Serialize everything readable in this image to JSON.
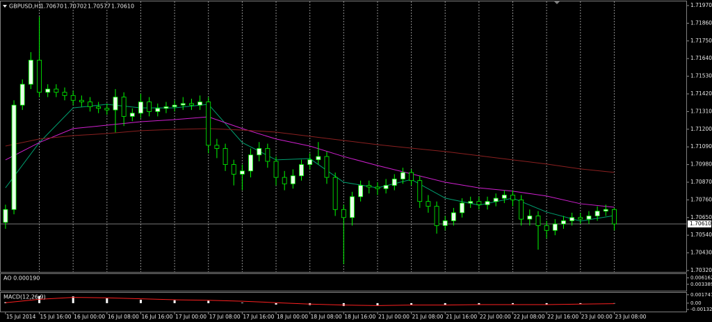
{
  "chart_data": {
    "type": "candlestick",
    "title": "GBPUSD,H1",
    "header_values": [
      {
        "value": 1.7067,
        "label": "1.70670"
      },
      {
        "value": 1.70702,
        "label": "1.70702"
      },
      {
        "value": 1.70577,
        "label": "1.70577"
      },
      {
        "value": 1.7061,
        "label": "1.70610"
      }
    ],
    "current_price": {
      "value": 1.7061,
      "label": "1.70610"
    },
    "grid": "vertical",
    "up_color": "#e8ffe8",
    "down_color": "#000000",
    "wick_color": "#00ff00",
    "xlim": [
      -1.3,
      161.2
    ],
    "ylim": [
      1.70307,
      1.71996
    ],
    "xticks": [
      {
        "value": 0,
        "label": "15 Jul 2014"
      },
      {
        "value": 8,
        "label": "15 Jul 16:00"
      },
      {
        "value": 16,
        "label": "16 Jul 00:00"
      },
      {
        "value": 24,
        "label": "16 Jul 08:00"
      },
      {
        "value": 32,
        "label": "16 Jul 16:00"
      },
      {
        "value": 40,
        "label": "17 Jul 00:00"
      },
      {
        "value": 48,
        "label": "17 Jul 08:00"
      },
      {
        "value": 56,
        "label": "17 Jul 16:00"
      },
      {
        "value": 64,
        "label": "18 Jul 00:00"
      },
      {
        "value": 72,
        "label": "18 Jul 08:00"
      },
      {
        "value": 80,
        "label": "18 Jul 16:00"
      },
      {
        "value": 88,
        "label": "21 Jul 00:00"
      },
      {
        "value": 96,
        "label": "21 Jul 08:00"
      },
      {
        "value": 104,
        "label": "21 Jul 16:00"
      },
      {
        "value": 112,
        "label": "22 Jul 00:00"
      },
      {
        "value": 120,
        "label": "22 Jul 08:00"
      },
      {
        "value": 128,
        "label": "22 Jul 16:00"
      },
      {
        "value": 136,
        "label": "23 Jul 00:00"
      },
      {
        "value": 144,
        "label": "23 Jul 08:00"
      }
    ],
    "yticks": [
      {
        "value": 1.7197,
        "label": "1.71970"
      },
      {
        "value": 1.7186,
        "label": "1.71860"
      },
      {
        "value": 1.7175,
        "label": "1.71750"
      },
      {
        "value": 1.7164,
        "label": "1.71640"
      },
      {
        "value": 1.7153,
        "label": "1.71530"
      },
      {
        "value": 1.7142,
        "label": "1.71420"
      },
      {
        "value": 1.7131,
        "label": "1.71310"
      },
      {
        "value": 1.712,
        "label": "1.71200"
      },
      {
        "value": 1.7109,
        "label": "1.71090"
      },
      {
        "value": 1.7098,
        "label": "1.70980"
      },
      {
        "value": 1.7087,
        "label": "1.70870"
      },
      {
        "value": 1.7076,
        "label": "1.70760"
      },
      {
        "value": 1.7065,
        "label": "1.70650"
      },
      {
        "value": 1.7054,
        "label": "1.70540"
      },
      {
        "value": 1.7043,
        "label": "1.70430"
      },
      {
        "value": 1.7032,
        "label": "1.70320"
      }
    ],
    "x": [
      0,
      2,
      4,
      6,
      8,
      10,
      12,
      14,
      16,
      18,
      20,
      22,
      24,
      26,
      28,
      30,
      32,
      34,
      36,
      38,
      40,
      42,
      44,
      46,
      48,
      50,
      52,
      54,
      56,
      58,
      60,
      62,
      64,
      66,
      68,
      70,
      72,
      74,
      76,
      78,
      80,
      82,
      84,
      86,
      88,
      90,
      92,
      94,
      96,
      98,
      100,
      102,
      104,
      106,
      108,
      110,
      112,
      114,
      116,
      118,
      120,
      122,
      124,
      126,
      128,
      130,
      132,
      134,
      136,
      138,
      140,
      142,
      144
    ],
    "open": [
      1.7062,
      1.707,
      1.7135,
      1.7148,
      1.7163,
      1.7143,
      1.7145,
      1.7143,
      1.7141,
      1.7138,
      1.7137,
      1.7134,
      1.7133,
      1.7132,
      1.714,
      1.7128,
      1.713,
      1.7137,
      1.7131,
      1.7133,
      1.7134,
      1.7135,
      1.7136,
      1.7135,
      1.7137,
      1.711,
      1.7108,
      1.7098,
      1.7092,
      1.7094,
      1.7104,
      1.7108,
      1.71,
      1.709,
      1.7086,
      1.7091,
      1.7098,
      1.7101,
      1.7103,
      1.709,
      1.707,
      1.7065,
      1.7078,
      1.7085,
      1.7084,
      1.7083,
      1.7085,
      1.7089,
      1.7093,
      1.7088,
      1.7075,
      1.7072,
      1.706,
      1.7063,
      1.7068,
      1.7074,
      1.7075,
      1.7073,
      1.7075,
      1.7077,
      1.7079,
      1.7076,
      1.7064,
      1.7066,
      1.706,
      1.7057,
      1.7061,
      1.7063,
      1.7065,
      1.7064,
      1.7066,
      1.7069,
      1.707
    ],
    "high": [
      1.7073,
      1.7138,
      1.7151,
      1.7168,
      1.719,
      1.7148,
      1.7148,
      1.7146,
      1.7144,
      1.7141,
      1.714,
      1.7137,
      1.7136,
      1.7145,
      1.7143,
      1.7133,
      1.7142,
      1.714,
      1.7136,
      1.7137,
      1.7138,
      1.714,
      1.7139,
      1.7141,
      1.714,
      1.7114,
      1.7111,
      1.7101,
      1.7098,
      1.7108,
      1.7112,
      1.7111,
      1.7103,
      1.7094,
      1.7095,
      1.7101,
      1.7105,
      1.7112,
      1.7106,
      1.7093,
      1.7073,
      1.7081,
      1.7088,
      1.7088,
      1.7087,
      1.7089,
      1.7092,
      1.7096,
      1.7095,
      1.7091,
      1.7079,
      1.7075,
      1.7066,
      1.7071,
      1.7077,
      1.7078,
      1.7078,
      1.7078,
      1.708,
      1.7082,
      1.7082,
      1.7079,
      1.707,
      1.7069,
      1.7063,
      1.7064,
      1.7066,
      1.7068,
      1.7068,
      1.7069,
      1.7072,
      1.7073,
      1.7071
    ],
    "low": [
      1.7058,
      1.7067,
      1.7132,
      1.7145,
      1.714,
      1.714,
      1.714,
      1.7138,
      1.7135,
      1.7134,
      1.7131,
      1.713,
      1.7129,
      1.7118,
      1.7122,
      1.7125,
      1.7127,
      1.7128,
      1.7128,
      1.713,
      1.7131,
      1.7132,
      1.7132,
      1.7132,
      1.7105,
      1.7102,
      1.7094,
      1.7085,
      1.7082,
      1.709,
      1.71,
      1.7096,
      1.7085,
      1.7082,
      1.7083,
      1.7088,
      1.7095,
      1.7098,
      1.7086,
      1.7066,
      1.7036,
      1.706,
      1.7075,
      1.708,
      1.7079,
      1.708,
      1.7082,
      1.7086,
      1.7085,
      1.7071,
      1.7068,
      1.7055,
      1.7057,
      1.706,
      1.7065,
      1.7071,
      1.707,
      1.707,
      1.7072,
      1.7074,
      1.7072,
      1.706,
      1.706,
      1.7045,
      1.7052,
      1.7054,
      1.7058,
      1.706,
      1.7061,
      1.7061,
      1.7063,
      1.7066,
      1.7057
    ],
    "close": [
      1.707,
      1.7135,
      1.7148,
      1.7163,
      1.7143,
      1.7145,
      1.7143,
      1.7141,
      1.7138,
      1.7137,
      1.7134,
      1.7133,
      1.7132,
      1.714,
      1.7128,
      1.713,
      1.7137,
      1.7131,
      1.7133,
      1.7134,
      1.7135,
      1.7136,
      1.7135,
      1.7137,
      1.711,
      1.7108,
      1.7098,
      1.7092,
      1.7094,
      1.7104,
      1.7108,
      1.71,
      1.709,
      1.7086,
      1.7091,
      1.7098,
      1.7101,
      1.7103,
      1.709,
      1.707,
      1.7065,
      1.7078,
      1.7085,
      1.7084,
      1.7083,
      1.7085,
      1.7089,
      1.7093,
      1.7088,
      1.7075,
      1.7072,
      1.706,
      1.7063,
      1.7068,
      1.7074,
      1.7075,
      1.7073,
      1.7075,
      1.7077,
      1.7079,
      1.7076,
      1.7064,
      1.7066,
      1.706,
      1.7057,
      1.7061,
      1.7063,
      1.7065,
      1.7064,
      1.7066,
      1.7069,
      1.707,
      1.7061
    ],
    "series": [
      {
        "color": "#00a070",
        "x": [
          0,
          8,
          16,
          24,
          32,
          40,
          48,
          56,
          64,
          72,
          80,
          88,
          96,
          104,
          112,
          120,
          128,
          136,
          144
        ],
        "values": [
          1.70835,
          1.71117,
          1.71333,
          1.71355,
          1.71333,
          1.71333,
          1.71355,
          1.71117,
          1.71009,
          1.71017,
          1.7087,
          1.70835,
          1.70887,
          1.70771,
          1.70727,
          1.70771,
          1.70684,
          1.70628,
          1.70662
        ]
      },
      {
        "color": "#d020d0",
        "x": [
          0,
          8,
          16,
          24,
          32,
          40,
          48,
          56,
          64,
          72,
          80,
          88,
          96,
          104,
          112,
          120,
          128,
          136,
          144
        ],
        "values": [
          1.71009,
          1.71117,
          1.71204,
          1.71225,
          1.71247,
          1.7126,
          1.71277,
          1.71204,
          1.71139,
          1.71095,
          1.7103,
          1.70974,
          1.70922,
          1.7087,
          1.70835,
          1.70814,
          1.70784,
          1.70736,
          1.70714
        ]
      },
      {
        "color": "#8b2020",
        "x": [
          0,
          8,
          16,
          24,
          32,
          40,
          48,
          56,
          64,
          72,
          80,
          88,
          96,
          104,
          112,
          120,
          128,
          136,
          144
        ],
        "values": [
          1.71095,
          1.71139,
          1.7116,
          1.71173,
          1.71191,
          1.71199,
          1.71204,
          1.71195,
          1.71182,
          1.71156,
          1.7113,
          1.71104,
          1.71082,
          1.71061,
          1.71035,
          1.71009,
          1.70983,
          1.70953,
          1.70931
        ]
      }
    ],
    "panels": [
      {
        "type": "ao",
        "title": "AO 0.000190",
        "ylim": [
          0.000616,
          0.007826
        ],
        "yticks": [
          0.006162,
          0.003389
        ]
      },
      {
        "type": "macd",
        "title": "MACD(12,26,9)",
        "ylim": [
          -0.00175,
          0.00215
        ],
        "yticks": [
          0.001747,
          {
            "value": 0,
            "label": "0.00"
          },
          -0.00132
        ],
        "x": [
          0,
          8,
          16,
          24,
          32,
          40,
          48,
          56,
          64,
          72,
          80,
          88,
          96,
          104,
          112,
          120,
          128,
          136,
          144
        ],
        "histogram": {
          "color": "#ffffff",
          "values": [
            0.0002,
            0.0015,
            0.0014,
            0.001,
            0.0007,
            0.0006,
            0.0005,
            0.0001,
            -0.0003,
            -0.0004,
            -0.0006,
            -0.0005,
            -0.0003,
            -0.0004,
            -0.0003,
            -0.0002,
            -0.0003,
            -0.0002,
            0
          ]
        },
        "signal": {
          "color": "#ff2020",
          "values": [
            0.0001,
            0.0008,
            0.0012,
            0.0011,
            0.0009,
            0.0007,
            0.0006,
            0.0004,
            0.0001,
            -0.0002,
            -0.0004,
            -0.0005,
            -0.0004,
            -0.0004,
            -0.0003,
            -0.0003,
            -0.0003,
            -0.0002,
            -0.0001
          ]
        }
      }
    ]
  }
}
